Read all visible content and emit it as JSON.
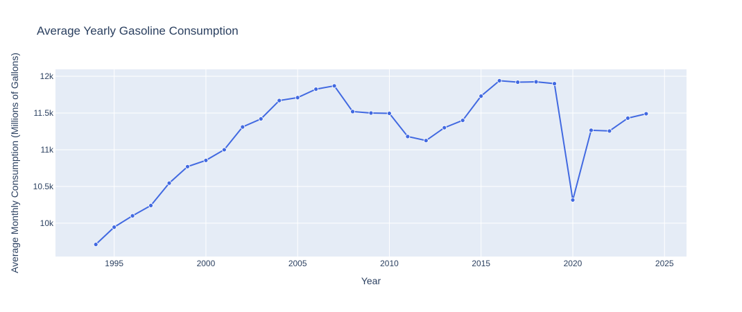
{
  "chart_data": {
    "type": "line",
    "title": "Average Yearly Gasoline Consumption",
    "xlabel": "Year",
    "ylabel": "Average Monthly Consumption (Millions of Gallons)",
    "xlim": [
      1991.8,
      2026.2
    ],
    "ylim": [
      9545,
      12095
    ],
    "x_ticks": [
      1995,
      2000,
      2005,
      2010,
      2015,
      2020,
      2025
    ],
    "x_tick_labels": [
      "1995",
      "2000",
      "2005",
      "2010",
      "2015",
      "2020",
      "2025"
    ],
    "y_ticks": [
      10000,
      10500,
      11000,
      11500,
      12000
    ],
    "y_tick_labels": [
      "10k",
      "10.5k",
      "11k",
      "11.5k",
      "12k"
    ],
    "grid": true,
    "legend": false,
    "colors": {
      "line": "#4169e1",
      "plot_bg": "#e5ecf6",
      "grid": "#ffffff",
      "text": "#2a3f5f"
    },
    "series": [
      {
        "x": [
          1994,
          1995,
          1996,
          1997,
          1998,
          1999,
          2000,
          2001,
          2002,
          2003,
          2004,
          2005,
          2006,
          2007,
          2008,
          2009,
          2010,
          2011,
          2012,
          2013,
          2014,
          2015,
          2016,
          2017,
          2018,
          2019,
          2020,
          2021,
          2022,
          2023,
          2024
        ],
        "y": [
          9710,
          9945,
          10100,
          10240,
          10545,
          10770,
          10855,
          11000,
          11310,
          11420,
          11670,
          11710,
          11825,
          11870,
          11520,
          11500,
          11495,
          11180,
          11125,
          11300,
          11400,
          11730,
          11940,
          11920,
          11925,
          11900,
          10315,
          11265,
          11255,
          11430,
          11490
        ]
      }
    ]
  }
}
